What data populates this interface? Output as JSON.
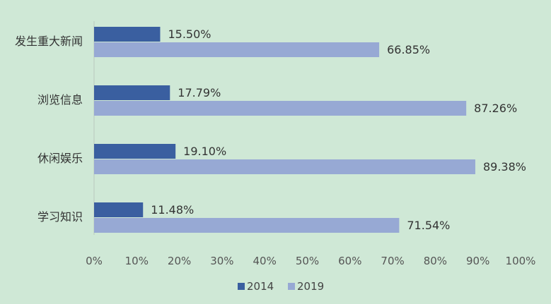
{
  "chart_data": {
    "type": "bar",
    "orientation": "horizontal",
    "categories": [
      "发生重大新闻",
      "浏览信息",
      "休闲娱乐",
      "学习知识"
    ],
    "series": [
      {
        "name": "2014",
        "values": [
          15.5,
          17.79,
          19.1,
          11.48
        ],
        "labels": [
          "15.50%",
          "17.79%",
          "19.10%",
          "11.48%"
        ],
        "color": "#3a5fa0"
      },
      {
        "name": "2019",
        "values": [
          66.85,
          87.26,
          89.38,
          71.54
        ],
        "labels": [
          "66.85%",
          "87.26%",
          "89.38%",
          "71.54%"
        ],
        "color": "#97a9d4"
      }
    ],
    "xlim": [
      0,
      100
    ],
    "x_ticks": [
      "0%",
      "10%",
      "20%",
      "30%",
      "40%",
      "50%",
      "60%",
      "70%",
      "80%",
      "90%",
      "100%"
    ],
    "grid": false,
    "legend_position": "bottom",
    "background": "#cfe8d6"
  }
}
